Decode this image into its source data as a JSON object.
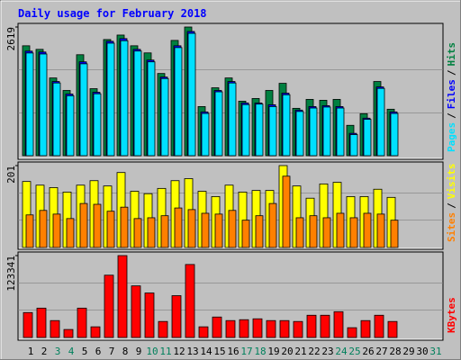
{
  "title": "Daily usage for February 2018",
  "legend_separator": "/",
  "chart_data": [
    {
      "type": "bar",
      "ylim": [
        0,
        2619
      ],
      "yticks": [
        2619
      ],
      "series": [
        {
          "name": "Hits",
          "color": "#008040",
          "values": [
            2237,
            2164,
            1582,
            1328,
            2055,
            1364,
            2364,
            2455,
            2237,
            2092,
            1673,
            2346,
            2619,
            1000,
            1382,
            1582,
            1109,
            1164,
            1328,
            1473,
            964,
            1146,
            1128,
            1146,
            618,
            855,
            1510,
            946,
            null,
            null,
            null
          ]
        },
        {
          "name": "Files",
          "color": "#0000ff",
          "values": [
            2128,
            2110,
            1510,
            1255,
            1910,
            1291,
            2328,
            2383,
            2164,
            1946,
            1600,
            2237,
            2528,
            891,
            1328,
            1510,
            1073,
            1073,
            1037,
            1273,
            928,
            1000,
            1018,
            1000,
            455,
            764,
            1400,
            891,
            null,
            null,
            null
          ]
        },
        {
          "name": "Pages",
          "color": "#00e0ff",
          "values": [
            2090,
            2070,
            1480,
            1220,
            1870,
            1260,
            2290,
            2340,
            2130,
            1910,
            1570,
            2200,
            2490,
            860,
            1300,
            1480,
            1040,
            1050,
            1000,
            1240,
            900,
            970,
            990,
            970,
            430,
            740,
            1370,
            860,
            null,
            null,
            null
          ]
        }
      ]
    },
    {
      "type": "bar",
      "ylim": [
        0,
        201
      ],
      "yticks": [
        201
      ],
      "series": [
        {
          "name": "Visits",
          "color": "#ffff00",
          "values": [
            162,
            153,
            147,
            136,
            153,
            164,
            151,
            184,
            138,
            132,
            145,
            164,
            169,
            138,
            125,
            153,
            136,
            140,
            140,
            201,
            151,
            121,
            156,
            160,
            125,
            125,
            143,
            123,
            null,
            null,
            null
          ]
        },
        {
          "name": "Sites",
          "color": "#ff8000",
          "values": [
            80,
            91,
            82,
            71,
            108,
            106,
            89,
            99,
            71,
            73,
            78,
            97,
            93,
            84,
            82,
            91,
            67,
            78,
            108,
            175,
            73,
            78,
            73,
            84,
            73,
            84,
            82,
            67,
            null,
            null,
            null
          ]
        }
      ]
    },
    {
      "type": "bar",
      "ylim": [
        0,
        123341
      ],
      "yticks": [
        123341
      ],
      "categories": [
        "1",
        "2",
        "3",
        "4",
        "5",
        "6",
        "7",
        "8",
        "9",
        "10",
        "11",
        "12",
        "13",
        "14",
        "15",
        "16",
        "17",
        "18",
        "19",
        "20",
        "21",
        "22",
        "23",
        "24",
        "25",
        "26",
        "27",
        "28",
        "29",
        "30",
        "31"
      ],
      "category_colors": [
        "#000000",
        "#000000",
        "#00805c",
        "#00805c",
        "#000000",
        "#000000",
        "#000000",
        "#000000",
        "#000000",
        "#00805c",
        "#00805c",
        "#000000",
        "#000000",
        "#000000",
        "#000000",
        "#000000",
        "#00805c",
        "#00805c",
        "#000000",
        "#000000",
        "#000000",
        "#000000",
        "#000000",
        "#00805c",
        "#00805c",
        "#000000",
        "#000000",
        "#000000",
        "#000000",
        "#000000",
        "#00805c"
      ],
      "series": [
        {
          "name": "KBytes",
          "color": "#ff0000",
          "values": [
            37539,
            44242,
            25472,
            12066,
            44242,
            16088,
            93846,
            123341,
            77758,
            67033,
            24132,
            63011,
            109934,
            16088,
            30835,
            25472,
            26813,
            28154,
            25472,
            25472,
            24132,
            33517,
            33517,
            38879,
            14747,
            25472,
            33517,
            24132,
            null,
            null,
            null
          ]
        }
      ]
    }
  ]
}
